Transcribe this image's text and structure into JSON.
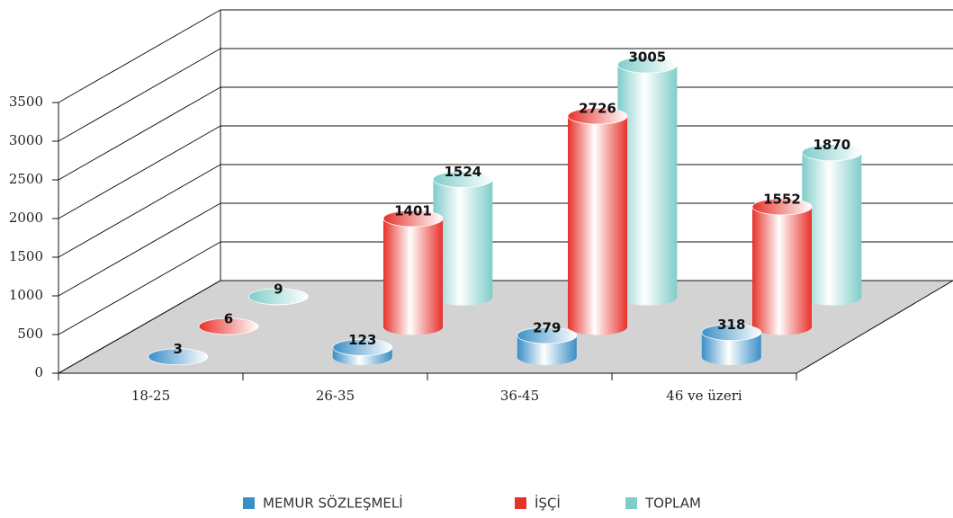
{
  "chart_data": {
    "type": "bar3d",
    "categories": [
      "18-25",
      "26-35",
      "36-45",
      "46 ve üzeri"
    ],
    "series": [
      {
        "name": "MEMUR SÖZLEŞMELİ",
        "color": "#3a8fc8",
        "values": [
          3,
          123,
          279,
          318
        ]
      },
      {
        "name": "İŞÇİ",
        "color": "#e8312a",
        "values": [
          6,
          1401,
          2726,
          1552
        ]
      },
      {
        "name": "TOPLAM",
        "color": "#7fcdc9",
        "values": [
          9,
          1524,
          3005,
          1870
        ]
      }
    ],
    "ylim": [
      0,
      3500
    ],
    "yticks": [
      0,
      500,
      1000,
      1500,
      2000,
      2500,
      3000,
      3500
    ],
    "grid": true,
    "legend": "bottom"
  }
}
